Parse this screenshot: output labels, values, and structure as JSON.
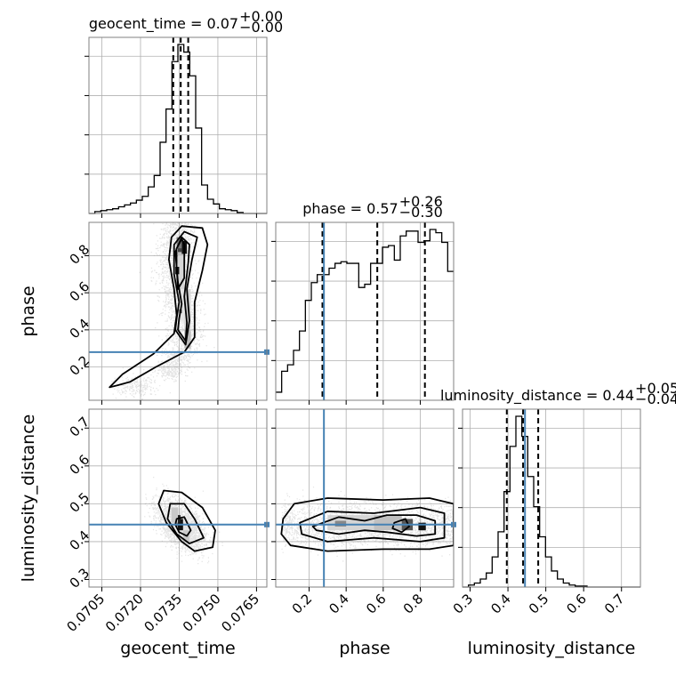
{
  "chart_data": {
    "type": "corner",
    "parameters": [
      "geocent_time",
      "phase",
      "luminosity_distance"
    ],
    "titles": [
      {
        "name": "geocent_time",
        "median": "0.07",
        "plus": "+0.00",
        "minus": "−0.00"
      },
      {
        "name": "phase",
        "median": "0.57",
        "plus": "+0.26",
        "minus": "−0.30"
      },
      {
        "name": "luminosity_distance",
        "median": "0.44",
        "plus": "+0.05",
        "minus": "−0.04"
      }
    ],
    "xlabels": [
      "geocent_time",
      "phase",
      "luminosity_distance"
    ],
    "ylabels": [
      "phase",
      "luminosity_distance"
    ],
    "ranges": {
      "geocent_time": [
        0.07,
        0.0769
      ],
      "phase": [
        0.02,
        0.98
      ],
      "luminosity_distance": [
        0.28,
        0.75
      ]
    },
    "ticks": {
      "geocent_time": [
        "0.0705",
        "0.0720",
        "0.0735",
        "0.0750",
        "0.0765"
      ],
      "phase": [
        "0.2",
        "0.4",
        "0.6",
        "0.8"
      ],
      "luminosity_distance": [
        "0.3",
        "0.4",
        "0.5",
        "0.6",
        "0.7"
      ]
    },
    "truths": {
      "phase": 0.28,
      "luminosity_distance": 0.445
    },
    "truth_color": "#4682b4",
    "quantiles": {
      "geocent_time": [
        0.07327,
        0.07356,
        0.07385
      ],
      "phase": [
        0.272,
        0.568,
        0.825
      ],
      "luminosity_distance": [
        0.397,
        0.44,
        0.48
      ]
    },
    "histograms": {
      "geocent_time": {
        "bins": [
          0.07,
          0.07023,
          0.07046,
          0.07069,
          0.07092,
          0.07115,
          0.07138,
          0.07161,
          0.07184,
          0.07207,
          0.0723,
          0.07253,
          0.07276,
          0.07299,
          0.07322,
          0.07345,
          0.07368,
          0.07391,
          0.07414,
          0.07437,
          0.0746,
          0.07483,
          0.07506,
          0.07529,
          0.07552,
          0.07575,
          0.07598,
          0.07621,
          0.07644,
          0.07667,
          0.0769
        ],
        "counts": [
          0,
          2,
          3,
          4,
          5,
          7,
          9,
          11,
          14,
          18,
          28,
          40,
          75,
          110,
          160,
          178,
          170,
          145,
          90,
          30,
          15,
          10,
          5,
          4,
          3,
          1,
          0,
          0,
          0,
          0
        ]
      },
      "phase": {
        "bins": [
          0.02,
          0.052,
          0.084,
          0.116,
          0.148,
          0.18,
          0.212,
          0.244,
          0.276,
          0.308,
          0.34,
          0.372,
          0.404,
          0.436,
          0.468,
          0.5,
          0.532,
          0.564,
          0.596,
          0.628,
          0.66,
          0.692,
          0.724,
          0.756,
          0.788,
          0.82,
          0.852,
          0.884,
          0.916,
          0.948,
          0.98
        ],
        "counts": [
          5,
          18,
          22,
          31,
          43,
          62,
          73,
          78,
          78,
          82,
          85,
          86,
          85,
          85,
          70,
          72,
          85,
          85,
          95,
          96,
          87,
          102,
          105,
          105,
          98,
          99,
          106,
          104,
          98,
          80
        ]
      },
      "luminosity_distance": {
        "bins": [
          0.28,
          0.2957,
          0.3113,
          0.327,
          0.3427,
          0.3583,
          0.374,
          0.3897,
          0.4053,
          0.421,
          0.4367,
          0.4523,
          0.468,
          0.4837,
          0.4993,
          0.515,
          0.5307,
          0.5463,
          0.562,
          0.5777,
          0.5933,
          0.609,
          0.6247,
          0.6403,
          0.656,
          0.6717,
          0.6873,
          0.703,
          0.7187,
          0.7343,
          0.75
        ],
        "counts": [
          0,
          2,
          4,
          8,
          14,
          30,
          55,
          95,
          140,
          170,
          150,
          110,
          80,
          50,
          30,
          16,
          8,
          4,
          2,
          1,
          1,
          0,
          0,
          0,
          0,
          0,
          0,
          0,
          0,
          0
        ]
      }
    },
    "contour_levels": [
      "0.5 sigma",
      "1 sigma",
      "1.5 sigma",
      "2 sigma"
    ],
    "panels": [
      {
        "x": "geocent_time",
        "y": "phase"
      },
      {
        "x": "geocent_time",
        "y": "luminosity_distance"
      },
      {
        "x": "phase",
        "y": "luminosity_distance"
      }
    ]
  }
}
